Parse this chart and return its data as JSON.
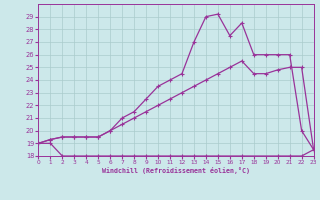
{
  "xlabel": "Windchill (Refroidissement éolien,°C)",
  "bg_color": "#cce8ea",
  "grid_color": "#aacccc",
  "line_color": "#993399",
  "ylim": [
    18,
    30
  ],
  "xlim": [
    0,
    23
  ],
  "yticks": [
    18,
    19,
    20,
    21,
    22,
    23,
    24,
    25,
    26,
    27,
    28,
    29
  ],
  "xticks": [
    0,
    1,
    2,
    3,
    4,
    5,
    6,
    7,
    8,
    9,
    10,
    11,
    12,
    13,
    14,
    15,
    16,
    17,
    18,
    19,
    20,
    21,
    22,
    23
  ],
  "line1_x": [
    0,
    1,
    2,
    3,
    4,
    5,
    6,
    7,
    8,
    9,
    10,
    11,
    12,
    13,
    14,
    15,
    17,
    20,
    21,
    22,
    23
  ],
  "line1_y": [
    19,
    19,
    18,
    18,
    18,
    18,
    18,
    18,
    18,
    18,
    18,
    18,
    18,
    18,
    18,
    18,
    18,
    18,
    18,
    18,
    18.5
  ],
  "line2_x": [
    0,
    1,
    2,
    3,
    4,
    5,
    6,
    7,
    8,
    9,
    10,
    11,
    12,
    13,
    14,
    15,
    16,
    17,
    18,
    19,
    20,
    21,
    22,
    23
  ],
  "line2_y": [
    19,
    19.3,
    19.5,
    19.5,
    19.5,
    19.5,
    20,
    20.5,
    21,
    21.5,
    22,
    22.5,
    23,
    23.5,
    24,
    24.5,
    25,
    25.5,
    24.5,
    24.5,
    24.8,
    25,
    25,
    18.5
  ],
  "line3_x": [
    0,
    1,
    2,
    3,
    4,
    5,
    6,
    7,
    8,
    9,
    10,
    11,
    12,
    13,
    14,
    15,
    16,
    17,
    18,
    19,
    20,
    21,
    22,
    23
  ],
  "line3_y": [
    19,
    19.3,
    19.5,
    19.5,
    19.5,
    19.5,
    20,
    21,
    21.5,
    22.5,
    23.5,
    24,
    24.5,
    27,
    29,
    29.2,
    27.5,
    28.5,
    26,
    26,
    26,
    26,
    20,
    18.5
  ]
}
